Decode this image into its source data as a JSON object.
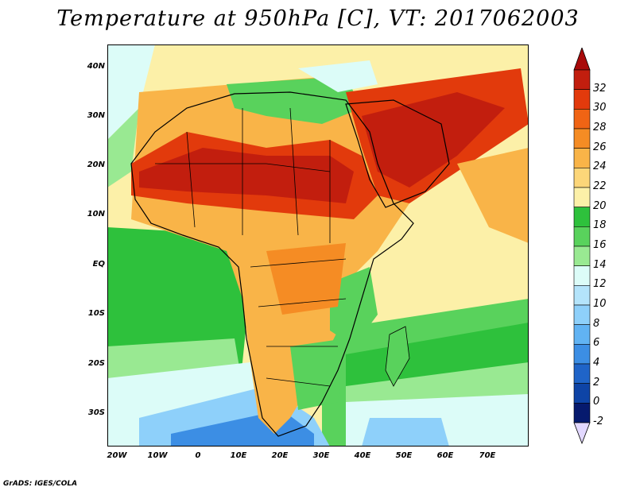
{
  "map": {
    "title": "Temperature at 950hPa [C], VT: 2017062003",
    "credit": "GrADS: IGES/COLA",
    "lat_labels": [
      "40N",
      "30N",
      "20N",
      "10N",
      "EQ",
      "10S",
      "20S",
      "30S"
    ],
    "lon_labels": [
      "20W",
      "10W",
      "0",
      "10E",
      "20E",
      "30E",
      "40E",
      "50E",
      "60E",
      "70E"
    ]
  },
  "colorbar": {
    "levels": [
      "32",
      "30",
      "28",
      "26",
      "24",
      "22",
      "20",
      "18",
      "16",
      "14",
      "12",
      "10",
      "8",
      "6",
      "4",
      "2",
      "0",
      "-2"
    ],
    "colors": [
      "#c21e0e",
      "#e23a0c",
      "#f06414",
      "#f58c24",
      "#f9b448",
      "#fcd679",
      "#fcf0a8",
      "#2ec13c",
      "#59d25c",
      "#99e992",
      "#dcfcf8",
      "#b4e4fb",
      "#8ed0fa",
      "#61b3f3",
      "#3c8ee4",
      "#1f64c8",
      "#0e44a6",
      "#061a6e"
    ],
    "top_arrow_color": "#a80a0a",
    "bottom_arrow_color": "#e2d8ff"
  },
  "palette": {
    "ocean_mid": "#fcf0a8",
    "ocean_cool": "#2ec13c",
    "hot": "#c21e0e",
    "border": "#000000"
  }
}
